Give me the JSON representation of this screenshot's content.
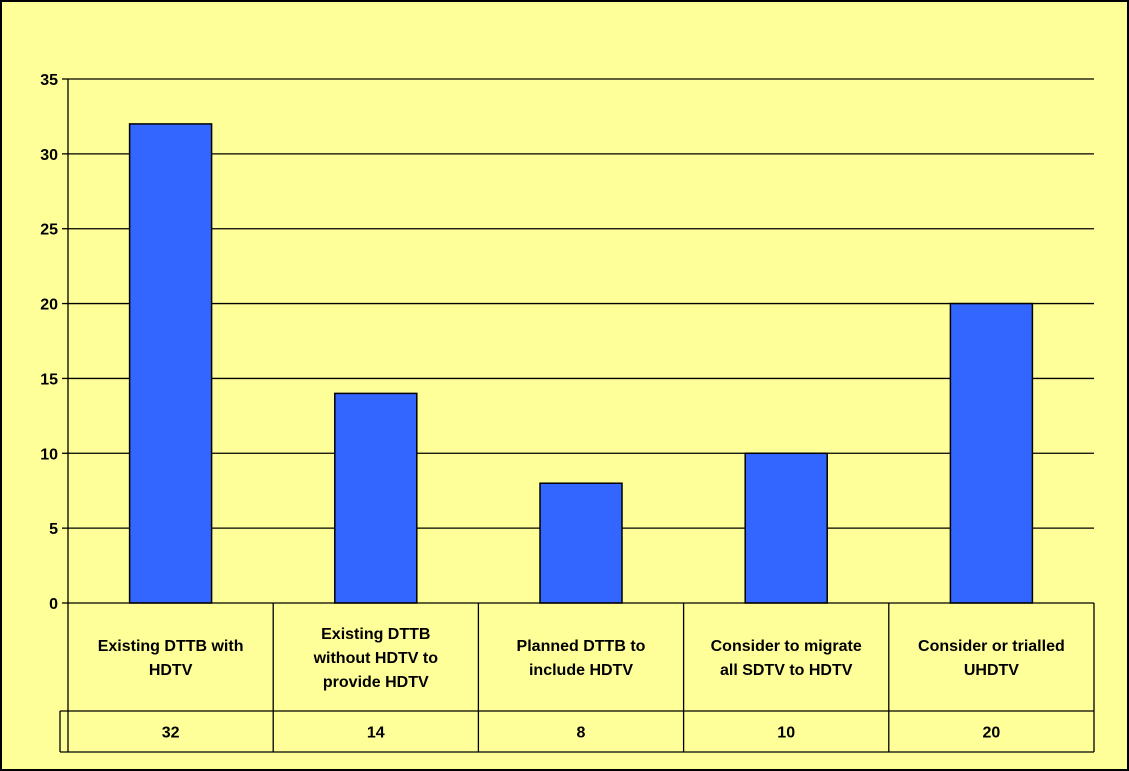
{
  "colors": {
    "background": "#FFFF99",
    "bar_fill": "#3366FF",
    "bar_stroke": "#000000",
    "gridline": "#000000"
  },
  "chart_data": {
    "type": "bar",
    "categories": [
      "Existing DTTB with HDTV",
      "Existing DTTB without HDTV to provide HDTV",
      "Planned DTTB to include HDTV",
      "Consider to migrate all SDTV to HDTV",
      "Consider or trialled UHDTV"
    ],
    "category_lines": [
      [
        "Existing DTTB with",
        "HDTV"
      ],
      [
        "Existing DTTB",
        "without HDTV to",
        "provide HDTV"
      ],
      [
        "Planned DTTB to",
        "include HDTV"
      ],
      [
        "Consider to migrate",
        "all SDTV to HDTV"
      ],
      [
        "Consider or trialled",
        "UHDTV"
      ]
    ],
    "values": [
      32,
      14,
      8,
      10,
      20
    ],
    "table_values": [
      "32",
      "14",
      "8",
      "10",
      "20"
    ],
    "y_ticks": [
      "0",
      "5",
      "10",
      "15",
      "20",
      "25",
      "30",
      "35"
    ],
    "ylim": [
      0,
      35
    ],
    "title": "",
    "xlabel": "",
    "ylabel": "",
    "grid": true,
    "legend": "none",
    "data_table": true
  }
}
